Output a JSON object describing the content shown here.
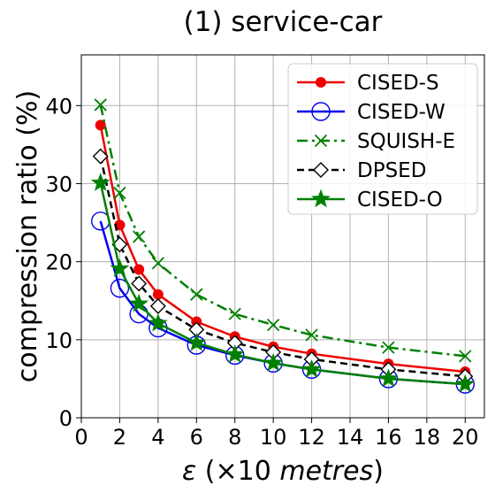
{
  "chart_data": {
    "type": "line",
    "title": "(1) service-car",
    "xlabel": {
      "symbol": "ε",
      "prefix": " (×10 ",
      "unit": "metres",
      "suffix": ")"
    },
    "ylabel": "compression ratio (%)",
    "xlim": [
      0,
      21
    ],
    "ylim": [
      0,
      46.5
    ],
    "xticks": [
      0,
      2,
      4,
      6,
      8,
      10,
      12,
      14,
      16,
      18,
      20
    ],
    "yticks": [
      0,
      10,
      20,
      30,
      40
    ],
    "grid": true,
    "legend_position": "top-right",
    "x": [
      1,
      2,
      3,
      4,
      6,
      8,
      10,
      12,
      16,
      20
    ],
    "series": [
      {
        "name": "CISED-S",
        "color": "#ee0000",
        "dash": "solid",
        "marker": "circle-filled",
        "values": [
          37.5,
          24.7,
          19.0,
          15.8,
          12.3,
          10.4,
          9.1,
          8.2,
          6.9,
          5.9
        ]
      },
      {
        "name": "CISED-W",
        "color": "#0000ee",
        "dash": "solid",
        "marker": "circle-open",
        "values": [
          25.2,
          16.6,
          13.3,
          11.5,
          9.3,
          8.0,
          7.0,
          6.2,
          5.0,
          4.3
        ]
      },
      {
        "name": "SQUISH-E",
        "color": "#008000",
        "dash": "dashdot",
        "marker": "x",
        "values": [
          40.1,
          28.8,
          23.2,
          19.8,
          15.8,
          13.3,
          11.9,
          10.6,
          9.0,
          7.9
        ]
      },
      {
        "name": "DPSED",
        "color": "#000000",
        "dash": "dashed",
        "marker": "diamond-open",
        "values": [
          33.5,
          22.2,
          17.2,
          14.3,
          11.3,
          9.6,
          8.4,
          7.5,
          6.2,
          5.3
        ]
      },
      {
        "name": "CISED-O",
        "color": "#008000",
        "dash": "solid",
        "marker": "star",
        "values": [
          30.1,
          19.1,
          14.6,
          12.1,
          9.6,
          8.1,
          7.0,
          6.2,
          5.0,
          4.3
        ]
      }
    ]
  }
}
